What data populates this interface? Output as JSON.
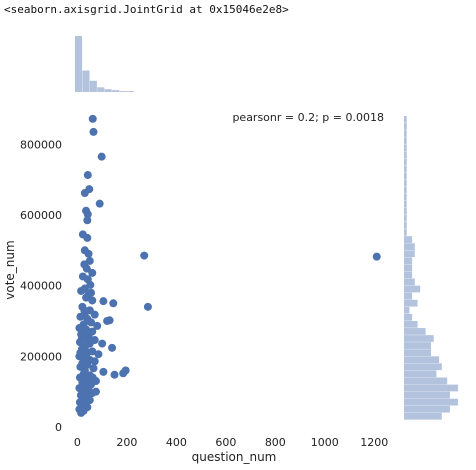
{
  "output_repr": "<seaborn.axisgrid.JointGrid at 0x15046e2e8>",
  "chart_data": {
    "type": "scatter",
    "title": "",
    "xlabel": "question_num",
    "ylabel": "vote_num",
    "annotation": "pearsonr = 0.2; p = 0.0018",
    "xlim": [
      -30,
      1300
    ],
    "ylim": [
      0,
      880000
    ],
    "x_ticks": [
      0,
      200,
      400,
      600,
      800,
      1000,
      1200
    ],
    "y_ticks": [
      0,
      200000,
      400000,
      600000,
      800000
    ],
    "x_tick_labels": [
      "0",
      "200",
      "400",
      "600",
      "800",
      "1000",
      "1200"
    ],
    "y_tick_labels": [
      "0",
      "200000",
      "400000",
      "600000",
      "800000"
    ],
    "grid": false,
    "colors": {
      "points": "#4c72b0",
      "hist": "#b3c3de"
    },
    "points": [
      [
        62,
        872000
      ],
      [
        65,
        835000
      ],
      [
        98,
        765000
      ],
      [
        42,
        713000
      ],
      [
        48,
        673000
      ],
      [
        30,
        662000
      ],
      [
        90,
        632000
      ],
      [
        35,
        612000
      ],
      [
        42,
        602000
      ],
      [
        40,
        585000
      ],
      [
        22,
        545000
      ],
      [
        40,
        535000
      ],
      [
        30,
        500000
      ],
      [
        45,
        490000
      ],
      [
        270,
        485000
      ],
      [
        1210,
        482000
      ],
      [
        50,
        470000
      ],
      [
        28,
        460000
      ],
      [
        38,
        448000
      ],
      [
        60,
        436000
      ],
      [
        22,
        426000
      ],
      [
        42,
        418000
      ],
      [
        52,
        402000
      ],
      [
        30,
        392000
      ],
      [
        15,
        385000
      ],
      [
        45,
        375000
      ],
      [
        35,
        366000
      ],
      [
        60,
        358000
      ],
      [
        105,
        356000
      ],
      [
        145,
        350000
      ],
      [
        285,
        340000
      ],
      [
        20,
        340000
      ],
      [
        50,
        330000
      ],
      [
        30,
        322000
      ],
      [
        70,
        318000
      ],
      [
        12,
        312000
      ],
      [
        40,
        306000
      ],
      [
        130,
        302000
      ],
      [
        120,
        300000
      ],
      [
        55,
        296000
      ],
      [
        25,
        290000
      ],
      [
        80,
        286000
      ],
      [
        8,
        280000
      ],
      [
        35,
        276000
      ],
      [
        60,
        270000
      ],
      [
        15,
        262000
      ],
      [
        45,
        256000
      ],
      [
        28,
        250000
      ],
      [
        70,
        246000
      ],
      [
        10,
        240000
      ],
      [
        50,
        236000
      ],
      [
        100,
        236000
      ],
      [
        32,
        228000
      ],
      [
        140,
        224000
      ],
      [
        18,
        220000
      ],
      [
        60,
        214000
      ],
      [
        40,
        210000
      ],
      [
        85,
        206000
      ],
      [
        8,
        200000
      ],
      [
        30,
        196000
      ],
      [
        50,
        190000
      ],
      [
        70,
        186000
      ],
      [
        20,
        180000
      ],
      [
        40,
        176000
      ],
      [
        12,
        170000
      ],
      [
        65,
        166000
      ],
      [
        30,
        160000
      ],
      [
        195,
        160000
      ],
      [
        105,
        156000
      ],
      [
        185,
        152000
      ],
      [
        25,
        150000
      ],
      [
        150,
        148000
      ],
      [
        50,
        146000
      ],
      [
        10,
        140000
      ],
      [
        40,
        136000
      ],
      [
        75,
        130000
      ],
      [
        20,
        126000
      ],
      [
        55,
        120000
      ],
      [
        32,
        116000
      ],
      [
        8,
        110000
      ],
      [
        45,
        106000
      ],
      [
        25,
        100000
      ],
      [
        60,
        96000
      ],
      [
        14,
        90000
      ],
      [
        38,
        86000
      ],
      [
        22,
        80000
      ],
      [
        50,
        76000
      ],
      [
        10,
        70000
      ],
      [
        30,
        66000
      ],
      [
        18,
        60000
      ],
      [
        40,
        56000
      ],
      [
        8,
        50000
      ],
      [
        25,
        46000
      ],
      [
        15,
        40000
      ],
      [
        35,
        120000
      ],
      [
        45,
        260000
      ],
      [
        28,
        330000
      ],
      [
        55,
        380000
      ],
      [
        18,
        250000
      ],
      [
        75,
        100000
      ],
      [
        12,
        210000
      ],
      [
        62,
        140000
      ]
    ],
    "marginal_x_counts": [
      60,
      23,
      12,
      5,
      3,
      2,
      1,
      1
    ],
    "marginal_x_bin_edges": [
      -10,
      20,
      50,
      80,
      110,
      140,
      170,
      200,
      230
    ],
    "marginal_y_bin_edges": [
      0,
      20000,
      40000,
      60000,
      80000,
      100000,
      120000,
      140000,
      160000,
      180000,
      200000,
      220000,
      240000,
      260000,
      280000,
      300000,
      320000,
      340000,
      360000,
      380000,
      400000,
      420000,
      440000,
      460000,
      480000,
      500000,
      520000,
      540000,
      560000,
      580000,
      600000,
      620000,
      640000,
      660000,
      680000,
      700000,
      720000,
      740000,
      760000,
      780000,
      800000,
      820000,
      840000,
      860000,
      880000
    ],
    "marginal_y_counts": [
      0,
      14,
      17,
      20,
      17,
      20,
      16,
      12,
      14,
      13,
      10,
      10,
      11,
      8,
      5,
      3,
      2,
      5,
      3,
      6,
      4,
      3,
      3,
      3,
      4,
      4,
      3,
      1,
      1,
      1,
      1,
      1,
      1,
      1,
      1,
      1,
      1,
      1,
      1,
      1,
      1,
      1,
      1,
      1
    ]
  }
}
